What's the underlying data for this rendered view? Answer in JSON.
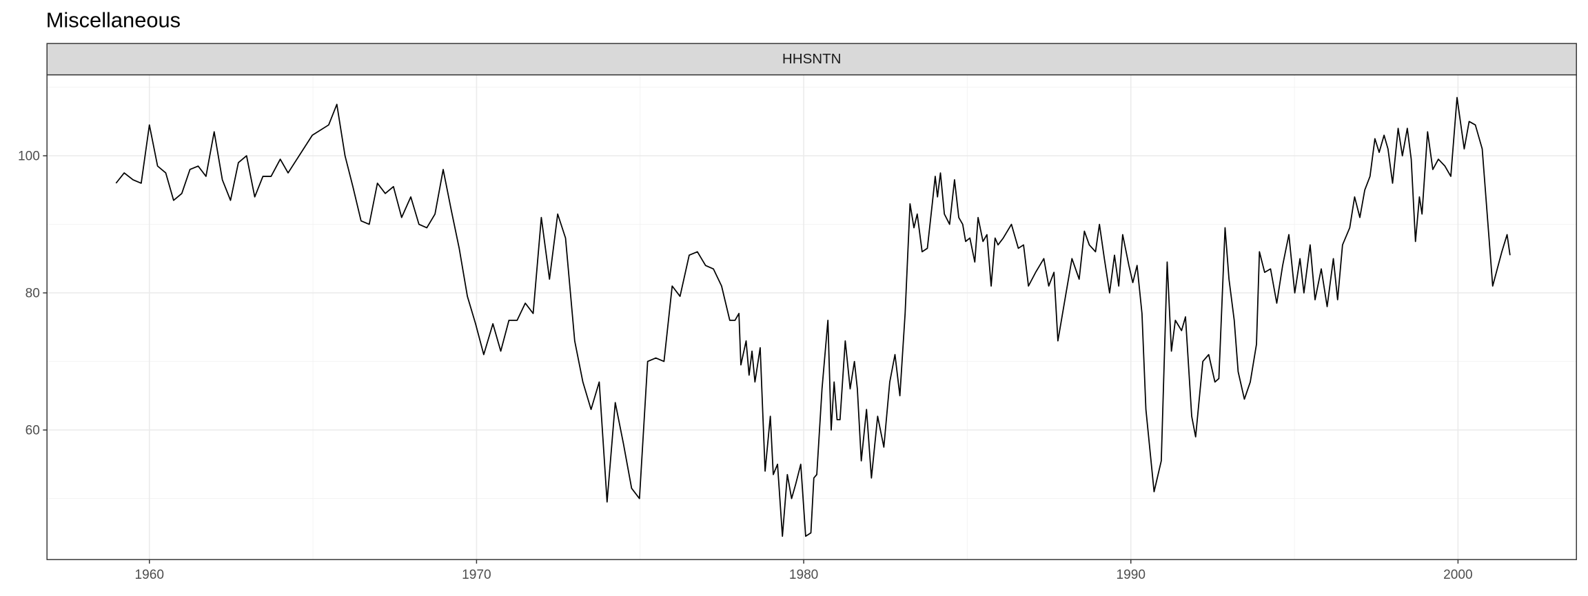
{
  "chart_data": {
    "type": "line",
    "title": "Miscellaneous",
    "x": [
      1958.98,
      1959.23,
      1959.5,
      1959.75,
      1960,
      1960.25,
      1960.5,
      1960.74,
      1960.99,
      1961.24,
      1961.49,
      1961.73,
      1961.98,
      1962.23,
      1962.48,
      1962.72,
      1962.97,
      1963.22,
      1963.47,
      1963.72,
      1964,
      1964.24,
      1964.98,
      1965.48,
      1965.73,
      1965.98,
      1966.22,
      1966.47,
      1966.72,
      1966.97,
      1967.21,
      1967.46,
      1967.71,
      1967.99,
      1968.24,
      1968.48,
      1968.73,
      1968.98,
      1969.23,
      1969.47,
      1969.72,
      1969.97,
      1970.22,
      1970.5,
      1970.74,
      1970.99,
      1971.24,
      1971.49,
      1971.73,
      1971.98,
      1972.23,
      1972.48,
      1972.72,
      1973,
      1973.25,
      1973.5,
      1973.75,
      1973.99,
      1974.24,
      1974.49,
      1974.74,
      1974.98,
      1975.23,
      1975.48,
      1975.73,
      1975.98,
      1976.22,
      1976.5,
      1976.75,
      1977,
      1977.24,
      1977.49,
      1977.74,
      1977.9,
      1978.02,
      1978.08,
      1978.24,
      1978.33,
      1978.42,
      1978.51,
      1978.67,
      1978.82,
      1978.98,
      1979.07,
      1979.2,
      1979.35,
      1979.5,
      1979.63,
      1979.75,
      1979.91,
      1980.06,
      1980.22,
      1980.31,
      1980.4,
      1980.56,
      1980.74,
      1980.84,
      1980.93,
      1981.02,
      1981.11,
      1981.27,
      1981.42,
      1981.55,
      1981.64,
      1981.76,
      1981.92,
      1982.07,
      1982.26,
      1982.45,
      1982.63,
      1982.79,
      1982.94,
      1983.1,
      1983.25,
      1983.37,
      1983.47,
      1983.62,
      1983.78,
      1983.93,
      1984.02,
      1984.09,
      1984.18,
      1984.3,
      1984.46,
      1984.61,
      1984.74,
      1984.86,
      1984.95,
      1985.08,
      1985.23,
      1985.33,
      1985.48,
      1985.6,
      1985.73,
      1985.85,
      1985.94,
      1986.1,
      1986.35,
      1986.56,
      1986.72,
      1986.87,
      1987.09,
      1987.34,
      1987.49,
      1987.65,
      1987.77,
      1988.02,
      1988.2,
      1988.42,
      1988.58,
      1988.73,
      1988.92,
      1989.04,
      1989.19,
      1989.35,
      1989.5,
      1989.63,
      1989.75,
      1989.94,
      1990.06,
      1990.19,
      1990.34,
      1990.46,
      1990.71,
      1990.93,
      1991.11,
      1991.24,
      1991.36,
      1991.55,
      1991.67,
      1991.86,
      1991.98,
      1992.2,
      1992.38,
      1992.57,
      1992.69,
      1992.88,
      1993,
      1993.16,
      1993.28,
      1993.47,
      1993.65,
      1993.84,
      1993.93,
      1994.09,
      1994.27,
      1994.46,
      1994.64,
      1994.83,
      1995.01,
      1995.17,
      1995.29,
      1995.48,
      1995.63,
      1995.82,
      1996,
      1996.19,
      1996.32,
      1996.47,
      1996.69,
      1996.84,
      1997,
      1997.15,
      1997.31,
      1997.46,
      1997.59,
      1997.74,
      1997.86,
      1998,
      1998.17,
      1998.3,
      1998.45,
      1998.57,
      1998.7,
      1998.82,
      1998.9,
      1999.07,
      1999.23,
      1999.4,
      1999.6,
      1999.78,
      1999.97,
      2000.19,
      2000.34,
      2000.53,
      2000.74,
      2000.9,
      2001.06,
      2001.34,
      2001.5,
      2001.59
    ],
    "series": [
      {
        "name": "HHSNTN",
        "color": "#000000",
        "values": [
          96,
          97.5,
          96.5,
          96,
          104.5,
          98.5,
          97.5,
          93.5,
          94.5,
          98,
          98.5,
          97,
          103.5,
          96.5,
          93.5,
          99,
          100,
          94,
          97,
          97,
          99.5,
          97.5,
          103,
          104.5,
          107.5,
          100,
          95.5,
          90.5,
          90,
          96,
          94.5,
          95.5,
          91,
          94,
          90,
          89.5,
          91.5,
          98,
          92,
          86.5,
          79.5,
          75.5,
          71,
          75.5,
          71.5,
          76,
          76,
          78.5,
          77,
          91,
          82,
          91.5,
          88,
          73,
          67,
          63,
          67,
          49.5,
          64,
          58,
          51.5,
          50,
          70,
          70.5,
          70,
          81,
          79.5,
          85.5,
          86,
          84,
          83.5,
          81,
          76,
          76,
          77,
          69.5,
          73,
          68,
          71.5,
          67,
          72,
          54,
          62,
          53.5,
          55,
          44.5,
          53.5,
          50,
          52,
          55,
          44.5,
          45,
          53,
          53.5,
          66,
          76,
          60,
          67,
          61.5,
          61.5,
          73,
          66,
          70,
          66,
          55.5,
          63,
          53,
          62,
          57.5,
          67,
          71,
          65,
          77,
          93,
          89.5,
          91.5,
          86,
          86.5,
          93,
          97,
          94,
          97.5,
          91.5,
          90,
          96.5,
          91,
          90,
          87.5,
          88,
          84.5,
          91,
          87.5,
          88.5,
          81,
          88,
          87,
          88,
          90,
          86.5,
          87,
          81,
          83,
          85,
          81,
          83,
          73,
          80,
          85,
          82,
          89,
          87,
          86,
          90,
          85,
          80,
          85.5,
          81,
          88.5,
          84,
          81.5,
          84,
          77,
          63,
          51,
          55.5,
          84.5,
          71.5,
          76,
          74.5,
          76.5,
          62,
          59,
          70,
          71,
          67,
          67.5,
          89.5,
          82,
          76,
          68.5,
          64.5,
          67,
          72.5,
          86,
          83,
          83.5,
          78.5,
          84,
          88.5,
          80,
          85,
          80,
          87,
          79,
          83.5,
          78,
          85,
          79,
          87,
          89.5,
          94,
          91,
          95,
          97,
          102.5,
          100.5,
          103,
          101,
          96,
          104,
          100,
          104,
          99.5,
          87.5,
          94,
          91.5,
          103.5,
          98,
          99.5,
          98.5,
          97,
          108.5,
          101,
          105,
          104.5,
          101,
          91,
          81,
          86,
          88.5,
          85.5
        ]
      }
    ],
    "xlim": [
      1956.87,
      2003.62
    ],
    "ylim": [
      41.1,
      111.8
    ],
    "xticks": [
      1960,
      1970,
      1980,
      1990,
      2000
    ],
    "yticks": [
      60,
      80,
      100
    ],
    "grid": true
  }
}
